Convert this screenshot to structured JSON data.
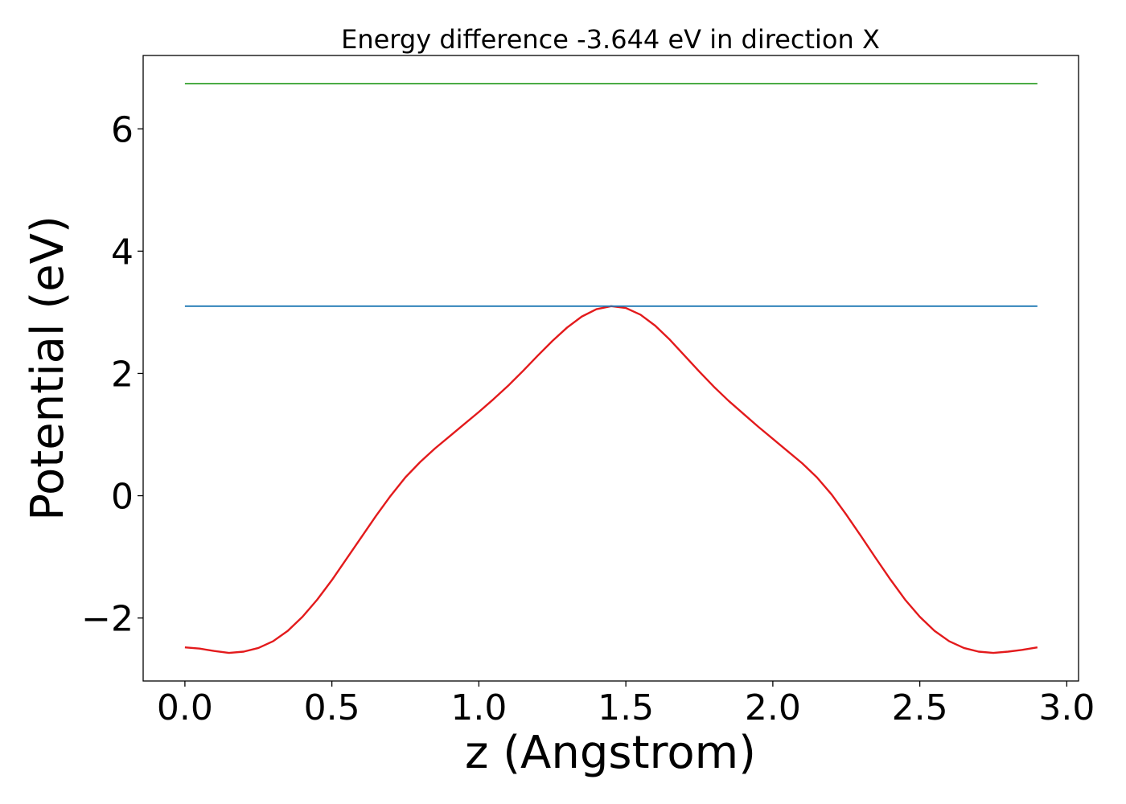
{
  "chart_data": {
    "type": "line",
    "title": "Energy difference -3.644 eV in direction X",
    "xlabel": "z (Angstrom)",
    "ylabel": "Potential (eV)",
    "xlim": [
      -0.142,
      3.04
    ],
    "ylim": [
      -3.03,
      7.2
    ],
    "xticks": [
      0.0,
      0.5,
      1.0,
      1.5,
      2.0,
      2.5,
      3.0
    ],
    "xtick_labels": [
      "0.0",
      "0.5",
      "1.0",
      "1.5",
      "2.0",
      "2.5",
      "3.0"
    ],
    "yticks": [
      -2,
      0,
      2,
      4,
      6
    ],
    "ytick_labels": [
      "−2",
      "0",
      "2",
      "4",
      "6"
    ],
    "grid": false,
    "colors": {
      "potential": "#e31a1c",
      "max_line": "#1f78b4",
      "top_line": "#33a02c"
    },
    "series": [
      {
        "key": "potential",
        "x": [
          0.0,
          0.05,
          0.1,
          0.15,
          0.2,
          0.25,
          0.3,
          0.35,
          0.4,
          0.45,
          0.5,
          0.55,
          0.6,
          0.65,
          0.7,
          0.75,
          0.8,
          0.85,
          0.9,
          0.95,
          1.0,
          1.05,
          1.1,
          1.15,
          1.2,
          1.25,
          1.3,
          1.35,
          1.4,
          1.45,
          1.5,
          1.55,
          1.6,
          1.65,
          1.7,
          1.75,
          1.8,
          1.85,
          1.9,
          1.95,
          2.0,
          2.05,
          2.1,
          2.15,
          2.2,
          2.25,
          2.3,
          2.35,
          2.4,
          2.45,
          2.5,
          2.55,
          2.6,
          2.65,
          2.7,
          2.75,
          2.8,
          2.85,
          2.9
        ],
        "y": [
          -2.48,
          -2.5,
          -2.54,
          -2.57,
          -2.55,
          -2.49,
          -2.38,
          -2.21,
          -1.98,
          -1.7,
          -1.38,
          -1.03,
          -0.68,
          -0.33,
          0.0,
          0.3,
          0.55,
          0.77,
          0.97,
          1.17,
          1.37,
          1.58,
          1.8,
          2.04,
          2.29,
          2.53,
          2.75,
          2.93,
          3.05,
          3.1,
          3.07,
          2.96,
          2.78,
          2.55,
          2.29,
          2.03,
          1.78,
          1.55,
          1.34,
          1.13,
          0.93,
          0.73,
          0.53,
          0.3,
          0.02,
          -0.31,
          -0.66,
          -1.02,
          -1.37,
          -1.7,
          -1.98,
          -2.21,
          -2.38,
          -2.49,
          -2.55,
          -2.57,
          -2.55,
          -2.52,
          -2.48
        ]
      },
      {
        "key": "max_line",
        "x": [
          0.0,
          2.9
        ],
        "y": [
          3.1,
          3.1
        ]
      },
      {
        "key": "top_line",
        "x": [
          0.0,
          2.9
        ],
        "y": [
          6.74,
          6.74
        ]
      }
    ]
  }
}
